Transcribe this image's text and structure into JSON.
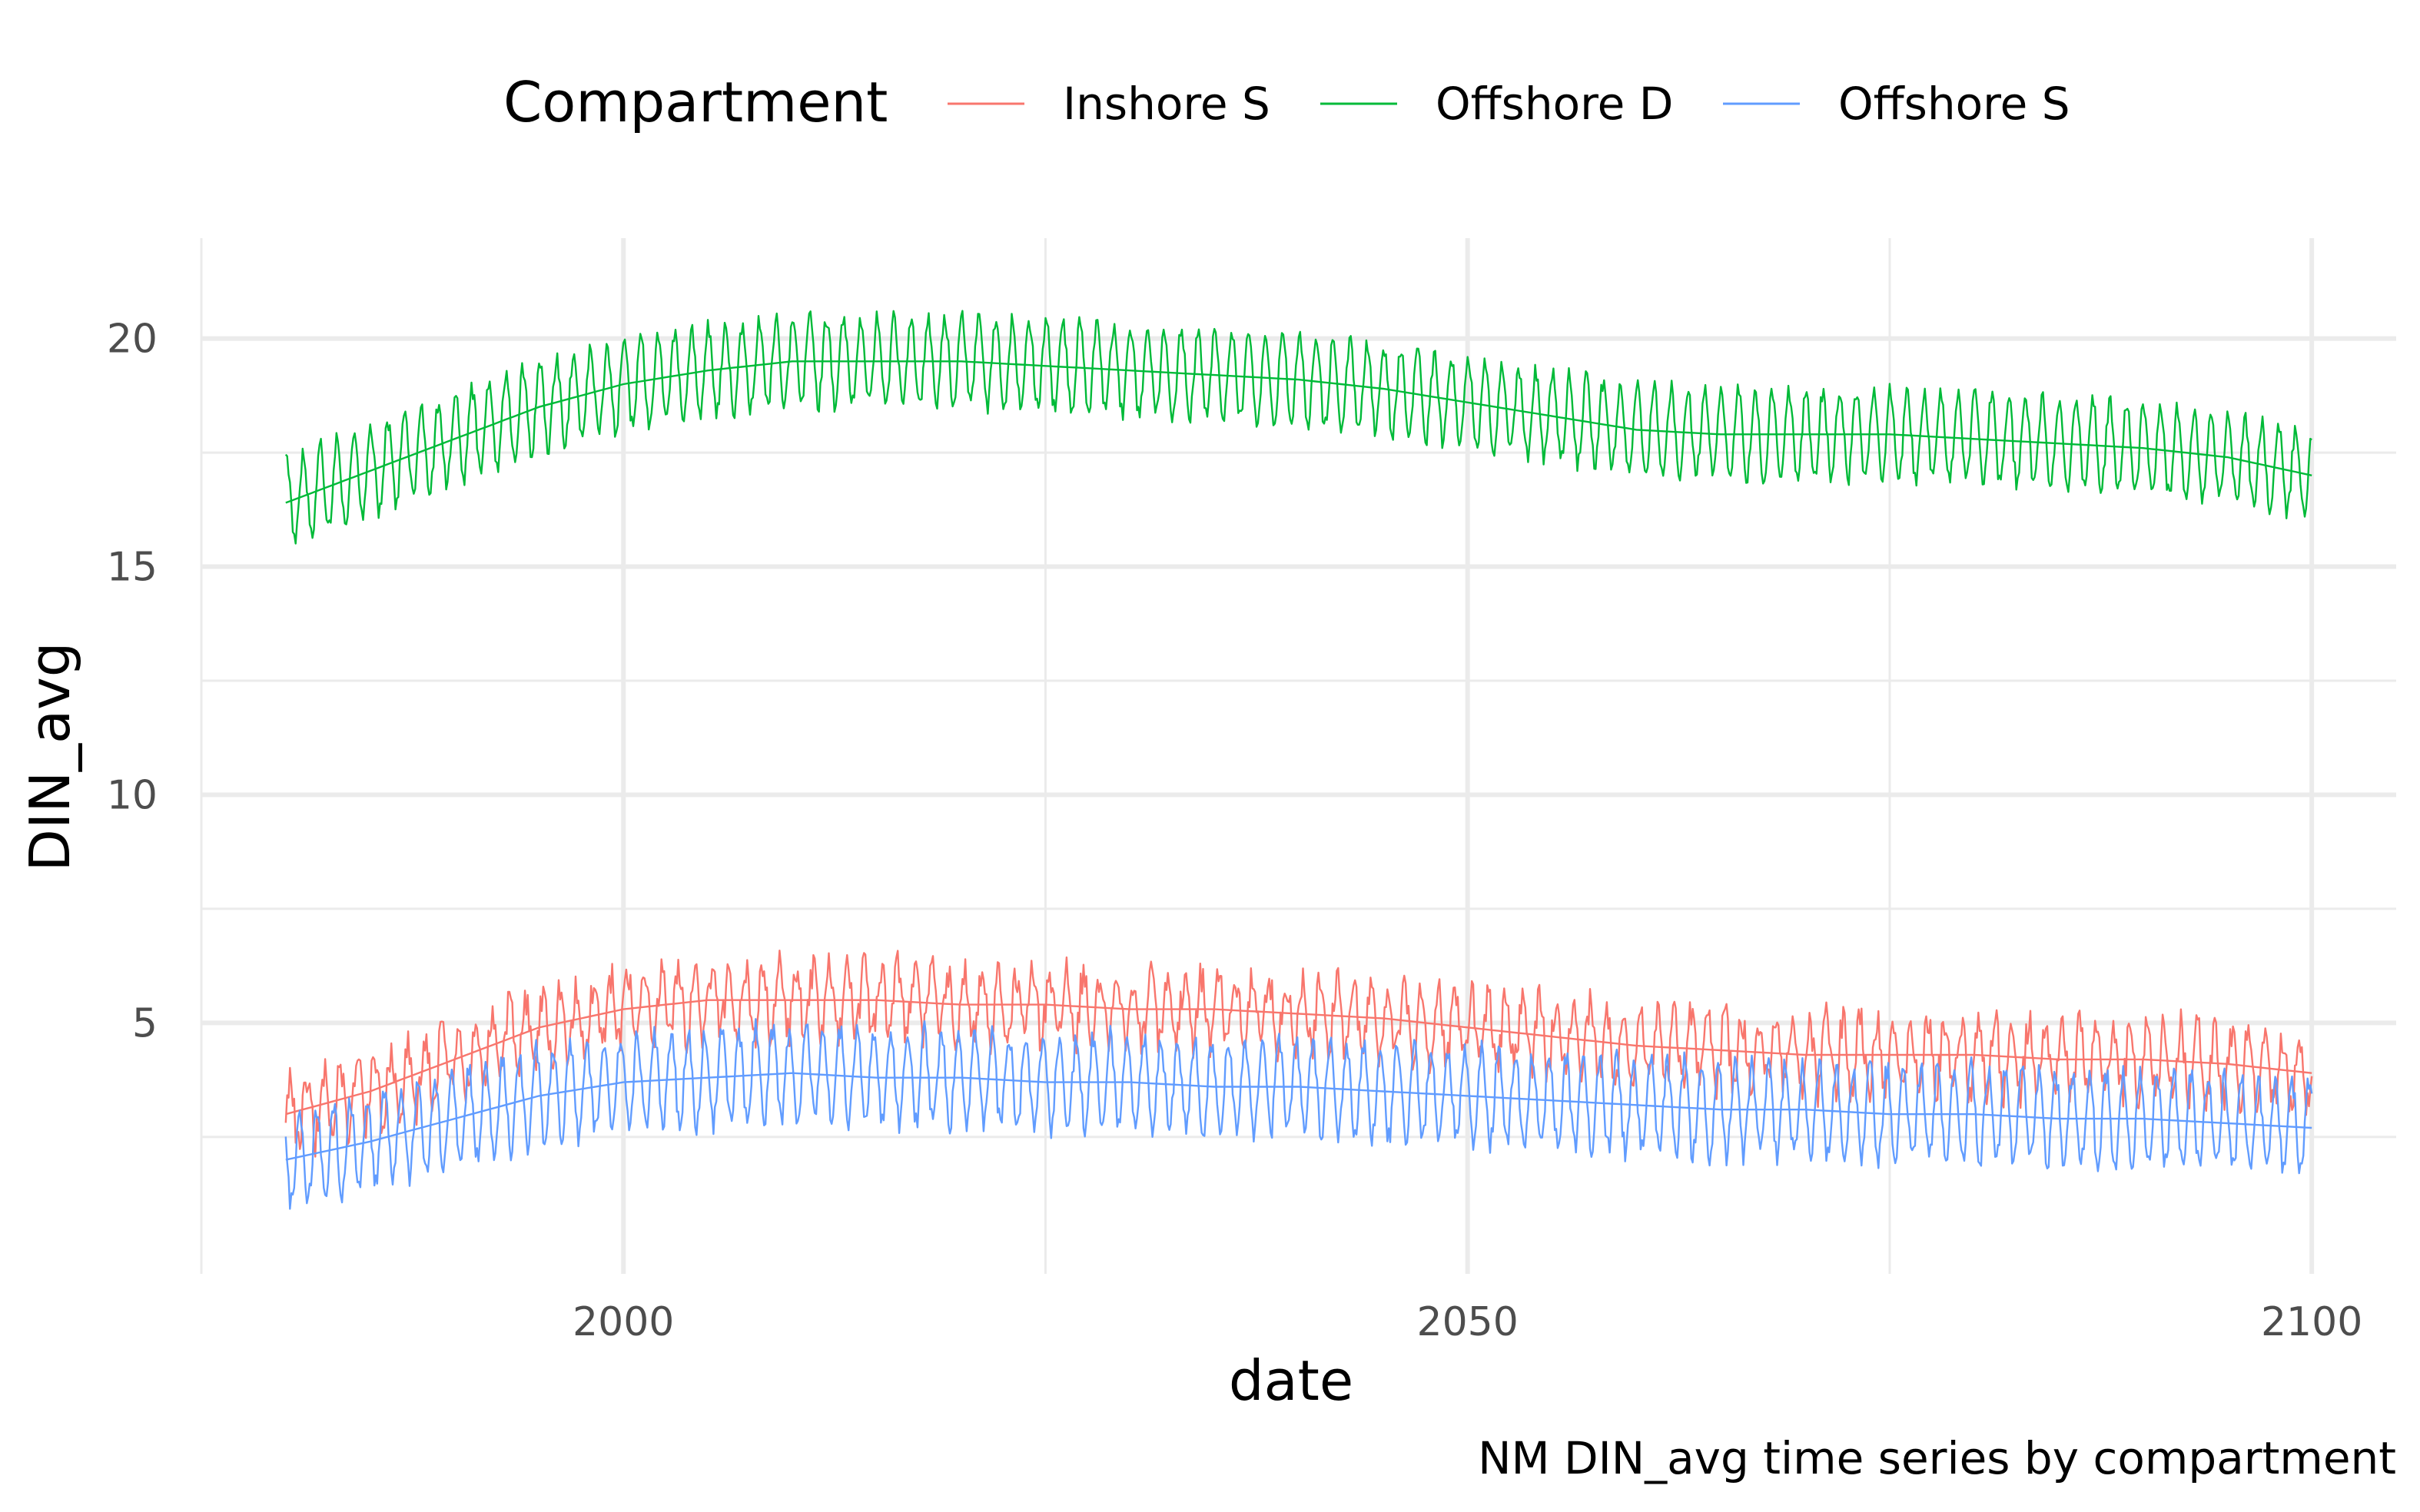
{
  "chart_data": {
    "type": "line",
    "title": "",
    "caption": "NM DIN_avg time series by compartment",
    "xlabel": "date",
    "ylabel": "DIN_avg",
    "xlim": [
      1975,
      2105
    ],
    "ylim": [
      -0.5,
      22.2
    ],
    "x_ticks": [
      2000,
      2050,
      2100
    ],
    "y_ticks": [
      5,
      10,
      15,
      20
    ],
    "grid": true,
    "legend": {
      "title": "Compartment",
      "position": "top",
      "entries": [
        "Inshore S",
        "Offshore D",
        "Offshore S"
      ]
    },
    "series": [
      {
        "name": "Inshore S",
        "color": "#F8766D",
        "seasonal_amplitude": 0.75,
        "noise": 0.4,
        "trend": {
          "x": [
            1980,
            1985,
            1990,
            1995,
            2000,
            2005,
            2010,
            2015,
            2020,
            2025,
            2030,
            2035,
            2040,
            2045,
            2050,
            2055,
            2060,
            2065,
            2070,
            2075,
            2080,
            2085,
            2090,
            2095,
            2100
          ],
          "y": [
            3.0,
            3.5,
            4.2,
            4.9,
            5.3,
            5.5,
            5.5,
            5.5,
            5.4,
            5.4,
            5.3,
            5.3,
            5.2,
            5.1,
            4.9,
            4.7,
            4.5,
            4.4,
            4.3,
            4.3,
            4.3,
            4.2,
            4.2,
            4.1,
            3.9
          ]
        }
      },
      {
        "name": "Offshore D",
        "color": "#00BA38",
        "seasonal_amplitude": 0.95,
        "noise": 0.2,
        "trend": {
          "x": [
            1980,
            1985,
            1990,
            1995,
            2000,
            2005,
            2010,
            2015,
            2020,
            2025,
            2030,
            2035,
            2040,
            2045,
            2050,
            2055,
            2060,
            2065,
            2070,
            2075,
            2080,
            2085,
            2090,
            2095,
            2100
          ],
          "y": [
            16.4,
            17.1,
            17.8,
            18.5,
            19.0,
            19.3,
            19.5,
            19.5,
            19.5,
            19.4,
            19.3,
            19.2,
            19.1,
            18.9,
            18.6,
            18.3,
            18.0,
            17.9,
            17.9,
            17.9,
            17.8,
            17.7,
            17.6,
            17.4,
            17.0
          ]
        }
      },
      {
        "name": "Offshore S",
        "color": "#619CFF",
        "seasonal_amplitude": 1.0,
        "noise": 0.25,
        "trend": {
          "x": [
            1980,
            1985,
            1990,
            1995,
            2000,
            2005,
            2010,
            2015,
            2020,
            2025,
            2030,
            2035,
            2040,
            2045,
            2050,
            2055,
            2060,
            2065,
            2070,
            2075,
            2080,
            2085,
            2090,
            2095,
            2100
          ],
          "y": [
            2.0,
            2.4,
            2.9,
            3.4,
            3.7,
            3.8,
            3.9,
            3.8,
            3.8,
            3.7,
            3.7,
            3.6,
            3.6,
            3.5,
            3.4,
            3.3,
            3.2,
            3.1,
            3.1,
            3.0,
            3.0,
            2.9,
            2.9,
            2.8,
            2.7
          ]
        }
      }
    ]
  }
}
